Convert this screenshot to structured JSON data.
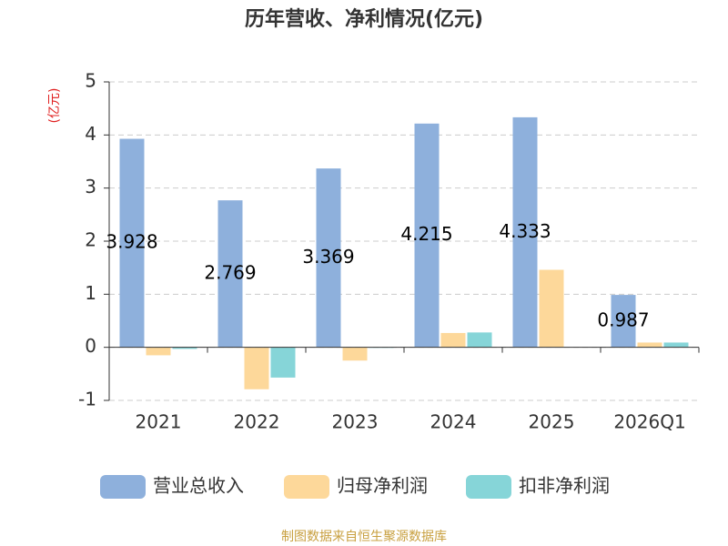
{
  "chart_data": {
    "type": "bar",
    "title": "历年营收、净利情况(亿元)",
    "y_unit": "(亿元)",
    "source": "制图数据来自恒生聚源数据库",
    "categories": [
      "2021",
      "2022",
      "2023",
      "2024",
      "2025",
      "2026Q1"
    ],
    "series": [
      {
        "name": "营业总收入",
        "color": "#8eb0dc",
        "values": [
          3.928,
          2.769,
          3.369,
          4.215,
          4.333,
          0.987
        ],
        "show_labels": true
      },
      {
        "name": "归母净利润",
        "color": "#fdd89a",
        "values": [
          -0.15,
          -0.79,
          -0.25,
          0.27,
          1.46,
          0.09
        ]
      },
      {
        "name": "扣非净利润",
        "color": "#86d5d8",
        "values": [
          -0.03,
          -0.57,
          -0.01,
          0.28,
          0.0,
          0.09
        ]
      }
    ],
    "ylim": [
      -1,
      5
    ],
    "yticks": [
      -1,
      0,
      1,
      2,
      3,
      4,
      5
    ],
    "grid": true
  }
}
